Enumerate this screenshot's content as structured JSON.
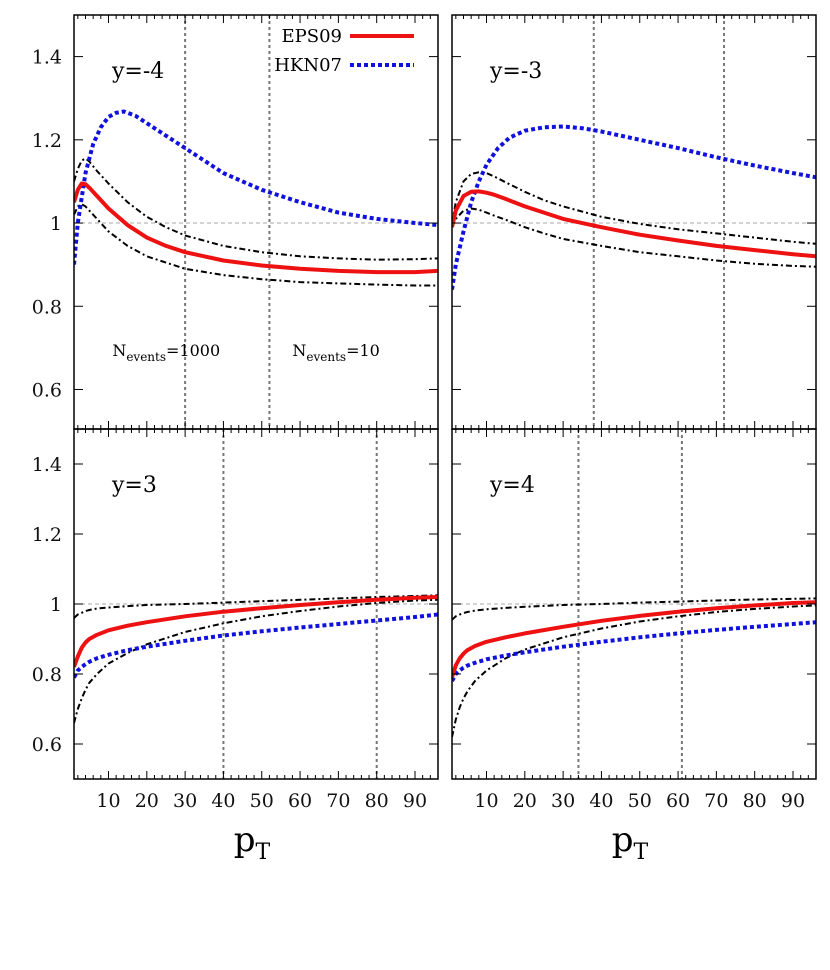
{
  "chart_data": [
    {
      "type": "line",
      "panel": "y=-4",
      "label": "y=-4",
      "xlim": [
        1,
        96
      ],
      "ylim": [
        0.5,
        1.5
      ],
      "xticks": [
        10,
        20,
        30,
        40,
        50,
        60,
        70,
        80,
        90
      ],
      "yticks": [
        0.6,
        0.8,
        1,
        1.2,
        1.4
      ],
      "ytick_labels": [
        "0.6",
        "0.8",
        "1",
        "1.2",
        "1.4"
      ],
      "reference_line": 1,
      "vlines": [
        30,
        52
      ],
      "annotations": [
        {
          "x": 11,
          "y": 0.68,
          "base": "N",
          "sub": "events",
          "rest": "=1000"
        },
        {
          "x": 58,
          "y": 0.68,
          "base": "N",
          "sub": "events",
          "rest": "=10"
        }
      ],
      "series": [
        {
          "name": "EPS09",
          "x": [
            1,
            2,
            3,
            4,
            5,
            7,
            10,
            15,
            20,
            25,
            30,
            40,
            50,
            60,
            70,
            80,
            90,
            96
          ],
          "y": [
            1.05,
            1.08,
            1.095,
            1.093,
            1.085,
            1.065,
            1.035,
            0.995,
            0.965,
            0.945,
            0.93,
            0.91,
            0.898,
            0.89,
            0.885,
            0.882,
            0.882,
            0.885
          ]
        },
        {
          "name": "HKN07",
          "x": [
            1,
            2,
            4,
            6,
            8,
            10,
            12,
            14,
            17,
            20,
            25,
            30,
            40,
            50,
            60,
            70,
            80,
            90,
            96
          ],
          "y": [
            0.9,
            1.0,
            1.12,
            1.19,
            1.23,
            1.255,
            1.265,
            1.268,
            1.258,
            1.24,
            1.21,
            1.18,
            1.12,
            1.08,
            1.05,
            1.025,
            1.01,
            1.0,
            0.995
          ]
        },
        {
          "name": "",
          "x": [
            1,
            2,
            3,
            4,
            5,
            7,
            10,
            15,
            20,
            25,
            30,
            40,
            50,
            60,
            70,
            80,
            90,
            96
          ],
          "y": [
            1.1,
            1.13,
            1.15,
            1.155,
            1.148,
            1.125,
            1.095,
            1.05,
            1.015,
            0.99,
            0.97,
            0.945,
            0.93,
            0.92,
            0.915,
            0.912,
            0.913,
            0.915
          ]
        },
        {
          "name": "",
          "x": [
            1,
            2,
            3,
            4,
            5,
            7,
            10,
            15,
            20,
            25,
            30,
            40,
            50,
            60,
            70,
            80,
            90,
            96
          ],
          "y": [
            1.02,
            1.04,
            1.045,
            1.04,
            1.03,
            1.01,
            0.98,
            0.945,
            0.92,
            0.905,
            0.89,
            0.875,
            0.865,
            0.858,
            0.855,
            0.852,
            0.85,
            0.85
          ]
        }
      ]
    },
    {
      "type": "line",
      "panel": "y=-3",
      "label": "y=-3",
      "xlim": [
        1,
        96
      ],
      "ylim": [
        0.5,
        1.5
      ],
      "xticks": [
        10,
        20,
        30,
        40,
        50,
        60,
        70,
        80,
        90
      ],
      "yticks": [
        0.6,
        0.8,
        1,
        1.2,
        1.4
      ],
      "reference_line": 1,
      "vlines": [
        38,
        72
      ],
      "series": [
        {
          "name": "EPS09",
          "x": [
            1,
            2,
            4,
            6,
            8,
            10,
            12,
            15,
            20,
            25,
            30,
            40,
            50,
            60,
            70,
            80,
            90,
            96
          ],
          "y": [
            0.99,
            1.03,
            1.065,
            1.075,
            1.076,
            1.073,
            1.068,
            1.058,
            1.04,
            1.025,
            1.01,
            0.99,
            0.972,
            0.958,
            0.945,
            0.935,
            0.925,
            0.92
          ]
        },
        {
          "name": "HKN07",
          "x": [
            1,
            2,
            4,
            6,
            8,
            10,
            13,
            16,
            20,
            25,
            30,
            35,
            40,
            50,
            60,
            70,
            80,
            90,
            96
          ],
          "y": [
            0.84,
            0.9,
            0.98,
            1.05,
            1.1,
            1.14,
            1.18,
            1.205,
            1.222,
            1.23,
            1.232,
            1.228,
            1.22,
            1.2,
            1.18,
            1.158,
            1.138,
            1.12,
            1.11
          ]
        },
        {
          "name": "",
          "x": [
            1,
            2,
            4,
            6,
            8,
            10,
            12,
            15,
            20,
            25,
            30,
            40,
            50,
            60,
            70,
            80,
            90,
            96
          ],
          "y": [
            1.0,
            1.05,
            1.1,
            1.118,
            1.122,
            1.12,
            1.112,
            1.098,
            1.075,
            1.055,
            1.04,
            1.015,
            0.998,
            0.985,
            0.975,
            0.965,
            0.955,
            0.95
          ]
        },
        {
          "name": "",
          "x": [
            1,
            2,
            4,
            6,
            8,
            10,
            12,
            15,
            20,
            25,
            30,
            40,
            50,
            60,
            70,
            80,
            90,
            96
          ],
          "y": [
            0.99,
            1.01,
            1.03,
            1.035,
            1.032,
            1.025,
            1.018,
            1.008,
            0.99,
            0.975,
            0.962,
            0.945,
            0.93,
            0.92,
            0.91,
            0.902,
            0.897,
            0.895
          ]
        }
      ]
    },
    {
      "type": "line",
      "panel": "y=3",
      "label": "y=3",
      "xlim": [
        1,
        96
      ],
      "ylim": [
        0.5,
        1.5
      ],
      "xticks": [
        10,
        20,
        30,
        40,
        50,
        60,
        70,
        80,
        90
      ],
      "xtick_labels": [
        "10",
        "20",
        "30",
        "40",
        "50",
        "60",
        "70",
        "80",
        "90"
      ],
      "yticks": [
        0.6,
        0.8,
        1,
        1.2,
        1.4
      ],
      "ytick_labels": [
        "0.6",
        "0.8",
        "1",
        "1.2",
        "1.4"
      ],
      "xlabel": "p",
      "xlabel_sub": "T",
      "reference_line": 1,
      "vlines": [
        40,
        80
      ],
      "series": [
        {
          "name": "EPS09",
          "x": [
            1,
            2,
            3,
            4,
            5,
            7,
            10,
            15,
            20,
            30,
            40,
            50,
            60,
            70,
            80,
            90,
            96
          ],
          "y": [
            0.82,
            0.85,
            0.875,
            0.89,
            0.9,
            0.912,
            0.925,
            0.938,
            0.948,
            0.965,
            0.978,
            0.988,
            0.997,
            1.005,
            1.012,
            1.018,
            1.02
          ]
        },
        {
          "name": "HKN07",
          "x": [
            1,
            2,
            3,
            4,
            5,
            7,
            10,
            15,
            20,
            30,
            40,
            50,
            60,
            70,
            80,
            90,
            96
          ],
          "y": [
            0.79,
            0.81,
            0.82,
            0.828,
            0.835,
            0.845,
            0.855,
            0.868,
            0.878,
            0.895,
            0.91,
            0.922,
            0.933,
            0.943,
            0.953,
            0.963,
            0.97
          ]
        },
        {
          "name": "",
          "x": [
            1,
            2,
            3,
            4,
            5,
            7,
            10,
            15,
            20,
            30,
            40,
            50,
            60,
            70,
            80,
            90,
            96
          ],
          "y": [
            0.96,
            0.97,
            0.975,
            0.98,
            0.983,
            0.987,
            0.99,
            0.994,
            0.997,
            1.0,
            1.004,
            1.008,
            1.012,
            1.016,
            1.02,
            1.023,
            1.025
          ]
        },
        {
          "name": "",
          "x": [
            1,
            2,
            3,
            4,
            5,
            7,
            10,
            15,
            20,
            30,
            40,
            50,
            60,
            70,
            80,
            90,
            96
          ],
          "y": [
            0.66,
            0.7,
            0.73,
            0.755,
            0.775,
            0.8,
            0.83,
            0.86,
            0.885,
            0.92,
            0.945,
            0.965,
            0.98,
            0.993,
            1.003,
            1.01,
            1.012
          ]
        }
      ]
    },
    {
      "type": "line",
      "panel": "y=4",
      "label": "y=4",
      "xlim": [
        1,
        96
      ],
      "ylim": [
        0.5,
        1.5
      ],
      "xticks": [
        10,
        20,
        30,
        40,
        50,
        60,
        70,
        80,
        90
      ],
      "xtick_labels": [
        "10",
        "20",
        "30",
        "40",
        "50",
        "60",
        "70",
        "80",
        "90"
      ],
      "yticks": [
        0.6,
        0.8,
        1,
        1.2,
        1.4
      ],
      "xlabel": "p",
      "xlabel_sub": "T",
      "reference_line": 1,
      "vlines": [
        34,
        61
      ],
      "series": [
        {
          "name": "EPS09",
          "x": [
            1,
            2,
            3,
            4,
            5,
            7,
            10,
            15,
            20,
            30,
            40,
            50,
            60,
            70,
            80,
            90,
            96
          ],
          "y": [
            0.79,
            0.825,
            0.845,
            0.858,
            0.868,
            0.88,
            0.892,
            0.905,
            0.916,
            0.935,
            0.952,
            0.966,
            0.978,
            0.988,
            0.996,
            1.003,
            1.005
          ]
        },
        {
          "name": "HKN07",
          "x": [
            1,
            2,
            3,
            4,
            5,
            7,
            10,
            15,
            20,
            30,
            40,
            50,
            60,
            70,
            80,
            90,
            96
          ],
          "y": [
            0.78,
            0.8,
            0.81,
            0.818,
            0.824,
            0.832,
            0.842,
            0.853,
            0.862,
            0.878,
            0.892,
            0.905,
            0.916,
            0.926,
            0.935,
            0.943,
            0.948
          ]
        },
        {
          "name": "",
          "x": [
            1,
            2,
            3,
            4,
            5,
            7,
            10,
            15,
            20,
            30,
            40,
            50,
            60,
            70,
            80,
            90,
            96
          ],
          "y": [
            0.955,
            0.965,
            0.97,
            0.974,
            0.977,
            0.981,
            0.985,
            0.989,
            0.992,
            0.997,
            1.0,
            1.004,
            1.007,
            1.01,
            1.013,
            1.015,
            1.016
          ]
        },
        {
          "name": "",
          "x": [
            1,
            2,
            3,
            4,
            5,
            7,
            10,
            15,
            20,
            30,
            40,
            50,
            60,
            70,
            80,
            90,
            96
          ],
          "y": [
            0.62,
            0.67,
            0.705,
            0.73,
            0.75,
            0.78,
            0.81,
            0.845,
            0.87,
            0.905,
            0.93,
            0.95,
            0.965,
            0.977,
            0.986,
            0.993,
            0.996
          ]
        }
      ]
    }
  ],
  "legend": [
    {
      "label": "EPS09",
      "series": "EPS09"
    },
    {
      "label": "HKN07",
      "series": "HKN07"
    }
  ],
  "colors": {
    "EPS09": "#ee1111",
    "HKN07": "#1111dd",
    "band": "#000000",
    "vline": "#777777",
    "ref": "#aaaaaa"
  }
}
